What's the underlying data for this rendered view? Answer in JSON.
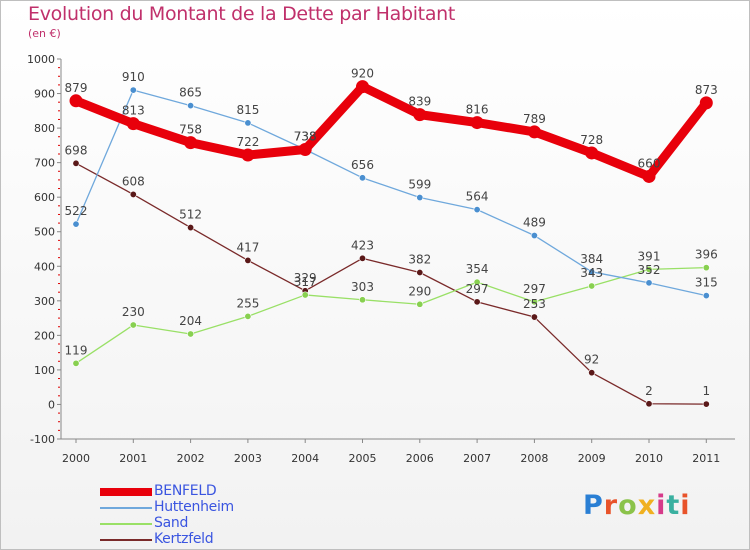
{
  "title": "Evolution du Montant de la Dette par Habitant",
  "subtitle": "(en €)",
  "logo": {
    "letters": [
      "P",
      "r",
      "o",
      "x",
      "i",
      "t",
      "i"
    ],
    "colors": [
      "#2a7fd4",
      "#e8532a",
      "#8bc34a",
      "#f0b020",
      "#d63a8a",
      "#3ab0a0",
      "#e8532a"
    ]
  },
  "chart_data": {
    "type": "line",
    "x": [
      "2000",
      "2001",
      "2002",
      "2003",
      "2004",
      "2005",
      "2006",
      "2007",
      "2008",
      "2009",
      "2010",
      "2011"
    ],
    "ylim": [
      -100,
      1000
    ],
    "yticks": [
      "-100",
      "0",
      "100",
      "200",
      "300",
      "400",
      "500",
      "600",
      "700",
      "800",
      "900",
      "1000"
    ],
    "grid": false,
    "legend_position": "bottom-left",
    "series": [
      {
        "name": "BENFELD",
        "color": "#e8000b",
        "values": [
          879,
          813,
          758,
          722,
          738,
          920,
          839,
          816,
          789,
          728,
          660,
          873
        ]
      },
      {
        "name": "Huttenheim",
        "color": "#6fa8dc",
        "values": [
          522,
          910,
          865,
          815,
          738,
          656,
          599,
          564,
          489,
          384,
          352,
          315
        ]
      },
      {
        "name": "Sand",
        "color": "#99e066",
        "values": [
          119,
          230,
          204,
          255,
          317,
          303,
          290,
          354,
          297,
          343,
          391,
          396
        ]
      },
      {
        "name": "Kertzfeld",
        "color": "#7a2a2a",
        "values": [
          698,
          608,
          512,
          417,
          329,
          423,
          382,
          297,
          253,
          92,
          2,
          1
        ]
      }
    ]
  }
}
